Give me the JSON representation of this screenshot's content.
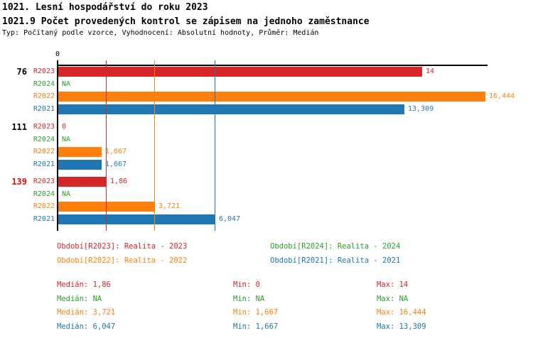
{
  "header": {
    "title": "1021. Lesní hospodářství do roku 2023",
    "subtitle": "1021.9 Počet provedených kontrol se zápisem na jednoho zaměstnance",
    "meta": "Typ: Počítaný podle vzorce, Vyhodnocení: Absolutní hodnoty, Průměr: Medián"
  },
  "colors": {
    "series": {
      "R2023": "#d62728",
      "R2024": "#2ca02c",
      "R2022": "#ff7f0e",
      "R2021": "#1f77b4"
    },
    "axis": "#000000",
    "group_label_default": "#000000",
    "group_label_highlight": "#dd1111"
  },
  "chart_data": {
    "type": "bar",
    "orientation": "horizontal",
    "axis": {
      "origin_tick_label": "0",
      "xlim": [
        0,
        16.6
      ],
      "grid": "median-reference-lines-only"
    },
    "legend_position": "below-chart",
    "groups": [
      {
        "label": "76",
        "highlighted": false,
        "bars": [
          {
            "series": "R2023",
            "value": 14,
            "label": "14"
          },
          {
            "series": "R2024",
            "value": null,
            "label": "NA"
          },
          {
            "series": "R2022",
            "value": 16.444,
            "label": "16,444"
          },
          {
            "series": "R2021",
            "value": 13.309,
            "label": "13,309"
          }
        ]
      },
      {
        "label": "111",
        "highlighted": false,
        "bars": [
          {
            "series": "R2023",
            "value": 0,
            "label": "0"
          },
          {
            "series": "R2024",
            "value": null,
            "label": "NA"
          },
          {
            "series": "R2022",
            "value": 1.667,
            "label": "1,667"
          },
          {
            "series": "R2021",
            "value": 1.667,
            "label": "1,667"
          }
        ]
      },
      {
        "label": "139",
        "highlighted": true,
        "bars": [
          {
            "series": "R2023",
            "value": 1.86,
            "label": "1,86"
          },
          {
            "series": "R2024",
            "value": null,
            "label": "NA"
          },
          {
            "series": "R2022",
            "value": 3.721,
            "label": "3,721"
          },
          {
            "series": "R2021",
            "value": 6.047,
            "label": "6,047"
          }
        ]
      }
    ],
    "median_lines": [
      {
        "series": "R2023",
        "value": 1.86
      },
      {
        "series": "R2022",
        "value": 3.721
      },
      {
        "series": "R2021",
        "value": 6.047
      }
    ]
  },
  "legend": {
    "items": [
      {
        "series": "R2023",
        "text": "Období[R2023]: Realita - 2023"
      },
      {
        "series": "R2024",
        "text": "Období[R2024]: Realita - 2024"
      },
      {
        "series": "R2022",
        "text": "Období[R2022]: Realita - 2022"
      },
      {
        "series": "R2021",
        "text": "Období[R2021]: Realita - 2021"
      }
    ]
  },
  "stats": {
    "rows": [
      {
        "series": "R2023",
        "median": "Medián: 1,86",
        "min": "Min: 0",
        "max": "Max: 14"
      },
      {
        "series": "R2024",
        "median": "Medián: NA",
        "min": "Min: NA",
        "max": "Max: NA"
      },
      {
        "series": "R2022",
        "median": "Medián: 3,721",
        "min": "Min: 1,667",
        "max": "Max: 16,444"
      },
      {
        "series": "R2021",
        "median": "Medián: 6,047",
        "min": "Min: 1,667",
        "max": "Max: 13,309"
      }
    ]
  }
}
